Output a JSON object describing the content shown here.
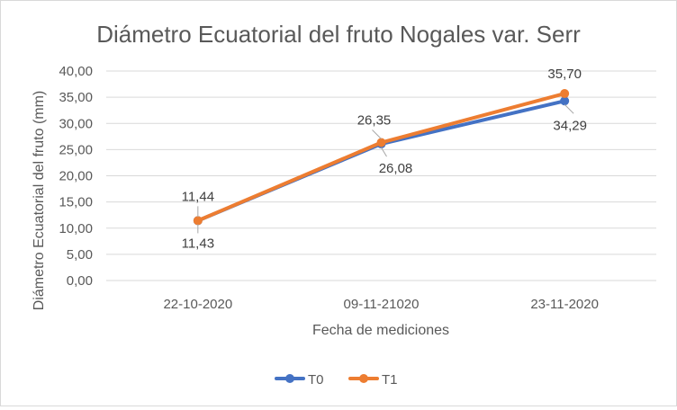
{
  "chart_data": {
    "type": "line",
    "title": "Diámetro Ecuatorial del fruto Nogales var. Serr",
    "xlabel": "Fecha de mediciones",
    "ylabel": "Diámetro Ecuatorial del fruto (mm)",
    "categories": [
      "22-10-2020",
      "09-11-21020",
      "23-11-2020"
    ],
    "ylim": [
      0,
      40
    ],
    "yticks": [
      "0,00",
      "5,00",
      "10,00",
      "15,00",
      "20,00",
      "25,00",
      "30,00",
      "35,00",
      "40,00"
    ],
    "grid": true,
    "legend_position": "bottom",
    "series": [
      {
        "name": "T0",
        "values": [
          11.43,
          26.08,
          34.29
        ],
        "labels": [
          "11,43",
          "26,08",
          "34,29"
        ],
        "color": "#4472C4"
      },
      {
        "name": "T1",
        "values": [
          11.44,
          26.35,
          35.7
        ],
        "labels": [
          "11,44",
          "26,35",
          "35,70"
        ],
        "color": "#ED7D31"
      }
    ]
  }
}
